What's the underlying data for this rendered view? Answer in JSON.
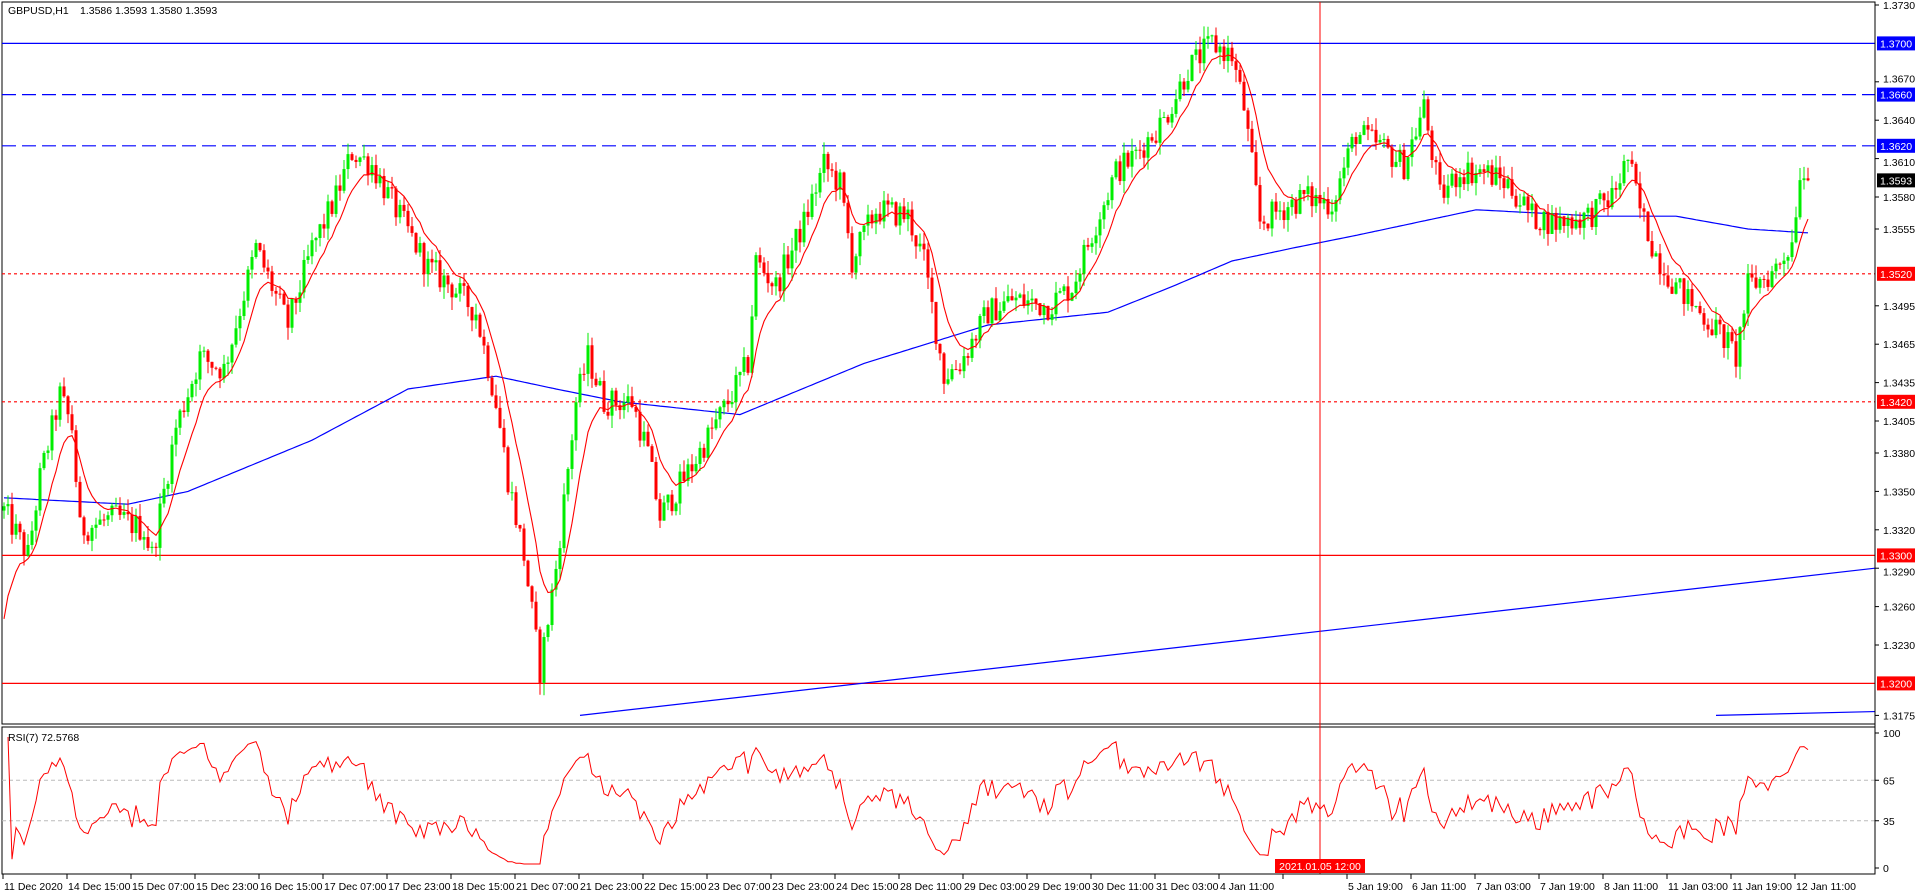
{
  "header": {
    "symbol": "GBPUSD,H1",
    "ohlc": "1.3586 1.3593 1.3580 1.3593"
  },
  "rsi": {
    "label": "RSI(7) 72.5768",
    "levels": [
      65,
      35
    ],
    "axis_labels": [
      "100",
      "65",
      "35",
      "0"
    ]
  },
  "colors": {
    "bull": "#00ee00",
    "bear": "#ff0000",
    "ma_fast": "#ff0000",
    "ma_slow": "#0000ff",
    "rsi": "#ff0000"
  },
  "price_axis": {
    "ticks": [
      "1.3730",
      "1.3670",
      "1.3640",
      "1.3610",
      "1.3580",
      "1.3555",
      "1.3495",
      "1.3465",
      "1.3435",
      "1.3405",
      "1.3380",
      "1.3350",
      "1.3320",
      "1.3290",
      "1.3260",
      "1.3230",
      "1.3175"
    ],
    "range": [
      1.3175,
      1.373
    ]
  },
  "horizontal_lines": [
    {
      "price": "1.3700",
      "color": "#0000ff",
      "style": "solid"
    },
    {
      "price": "1.3660",
      "color": "#0000ff",
      "style": "dashed"
    },
    {
      "price": "1.3620",
      "color": "#0000ff",
      "style": "dashed"
    },
    {
      "price": "1.3520",
      "color": "#ff0000",
      "style": "dotted"
    },
    {
      "price": "1.3420",
      "color": "#ff0000",
      "style": "dotted"
    },
    {
      "price": "1.3300",
      "color": "#ff0000",
      "style": "solid"
    },
    {
      "price": "1.3200",
      "color": "#ff0000",
      "style": "solid"
    }
  ],
  "current_price": "1.3593",
  "trend_lines": [
    {
      "from": [
        144,
        1.3175
      ],
      "to": [
        468,
        1.329
      ]
    },
    {
      "from": [
        428,
        1.3175
      ],
      "to": [
        468,
        1.3178
      ]
    }
  ],
  "crosshair": {
    "bar": 329,
    "label": "2021.01.05 12:00"
  },
  "time_axis": [
    "11 Dec 2020",
    "14 Dec 15:00",
    "15 Dec 07:00",
    "15 Dec 23:00",
    "16 Dec 15:00",
    "17 Dec 07:00",
    "17 Dec 23:00",
    "18 Dec 15:00",
    "21 Dec 07:00",
    "21 Dec 23:00",
    "22 Dec 15:00",
    "23 Dec 07:00",
    "23 Dec 23:00",
    "24 Dec 15:00",
    "28 Dec 11:00",
    "29 Dec 03:00",
    "29 Dec 19:00",
    "30 Dec 11:00",
    "31 Dec 03:00",
    "4 Jan 11:00",
    "",
    "5 Jan 19:00",
    "6 Jan 11:00",
    "7 Jan 03:00",
    "7 Jan 19:00",
    "8 Jan 11:00",
    "11 Jan 03:00",
    "11 Jan 19:00",
    "12 Jan 11:00"
  ],
  "chart_data": {
    "type": "candlestick",
    "bars": 452,
    "close_keypoints": [
      [
        0,
        1.3335
      ],
      [
        6,
        1.33
      ],
      [
        9,
        1.336
      ],
      [
        14,
        1.3425
      ],
      [
        17,
        1.34
      ],
      [
        19,
        1.332
      ],
      [
        28,
        1.333
      ],
      [
        35,
        1.332
      ],
      [
        37,
        1.33
      ],
      [
        43,
        1.34
      ],
      [
        49,
        1.3455
      ],
      [
        55,
        1.3445
      ],
      [
        63,
        1.354
      ],
      [
        71,
        1.348
      ],
      [
        77,
        1.354
      ],
      [
        83,
        1.358
      ],
      [
        87,
        1.3615
      ],
      [
        92,
        1.3605
      ],
      [
        98,
        1.357
      ],
      [
        106,
        1.3525
      ],
      [
        112,
        1.351
      ],
      [
        118,
        1.349
      ],
      [
        123,
        1.342
      ],
      [
        126,
        1.336
      ],
      [
        130,
        1.33
      ],
      [
        134,
        1.321
      ],
      [
        138,
        1.329
      ],
      [
        143,
        1.342
      ],
      [
        146,
        1.3455
      ],
      [
        150,
        1.342
      ],
      [
        157,
        1.342
      ],
      [
        161,
        1.338
      ],
      [
        164,
        1.333
      ],
      [
        172,
        1.337
      ],
      [
        181,
        1.342
      ],
      [
        186,
        1.345
      ],
      [
        188,
        1.353
      ],
      [
        193,
        1.351
      ],
      [
        200,
        1.356
      ],
      [
        205,
        1.3605
      ],
      [
        209,
        1.359
      ],
      [
        212,
        1.353
      ],
      [
        218,
        1.357
      ],
      [
        226,
        1.3565
      ],
      [
        230,
        1.353
      ],
      [
        235,
        1.344
      ],
      [
        239,
        1.345
      ],
      [
        246,
        1.349
      ],
      [
        252,
        1.35
      ],
      [
        261,
        1.3495
      ],
      [
        267,
        1.351
      ],
      [
        273,
        1.356
      ],
      [
        278,
        1.36
      ],
      [
        282,
        1.361
      ],
      [
        290,
        1.364
      ],
      [
        296,
        1.368
      ],
      [
        302,
        1.37
      ],
      [
        307,
        1.369
      ],
      [
        310,
        1.365
      ],
      [
        314,
        1.356
      ],
      [
        319,
        1.357
      ],
      [
        325,
        1.358
      ],
      [
        332,
        1.3575
      ],
      [
        338,
        1.363
      ],
      [
        344,
        1.362
      ],
      [
        350,
        1.3605
      ],
      [
        355,
        1.365
      ],
      [
        359,
        1.358
      ],
      [
        364,
        1.36
      ],
      [
        370,
        1.36
      ],
      [
        376,
        1.359
      ],
      [
        382,
        1.3565
      ],
      [
        388,
        1.356
      ],
      [
        396,
        1.3565
      ],
      [
        402,
        1.358
      ],
      [
        406,
        1.361
      ],
      [
        409,
        1.357
      ],
      [
        413,
        1.3535
      ],
      [
        418,
        1.351
      ],
      [
        424,
        1.349
      ],
      [
        430,
        1.347
      ],
      [
        433,
        1.3455
      ],
      [
        436,
        1.351
      ],
      [
        442,
        1.352
      ],
      [
        447,
        1.3545
      ],
      [
        449,
        1.36
      ],
      [
        451,
        1.3593
      ]
    ],
    "slow_ma_keypoints": [
      [
        0,
        1.3345
      ],
      [
        31,
        1.334
      ],
      [
        46,
        1.335
      ],
      [
        77,
        1.339
      ],
      [
        101,
        1.343
      ],
      [
        123,
        1.344
      ],
      [
        138,
        1.343
      ],
      [
        154,
        1.342
      ],
      [
        184,
        1.341
      ],
      [
        215,
        1.345
      ],
      [
        246,
        1.348
      ],
      [
        276,
        1.349
      ],
      [
        292,
        1.351
      ],
      [
        307,
        1.353
      ],
      [
        322,
        1.354
      ],
      [
        338,
        1.355
      ],
      [
        353,
        1.356
      ],
      [
        368,
        1.357
      ],
      [
        399,
        1.3565
      ],
      [
        418,
        1.3565
      ],
      [
        436,
        1.3555
      ],
      [
        451,
        1.3552
      ]
    ]
  }
}
